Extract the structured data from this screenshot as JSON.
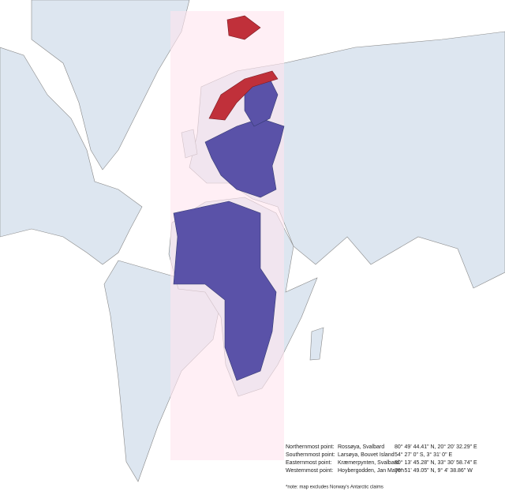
{
  "extreme_points": [
    {
      "label": "Northernmost point:",
      "place": "Rossøya, Svalbard",
      "coordinates": "80° 49' 44.41\" N, 20° 20' 32.29\" E"
    },
    {
      "label": "Southernmost point:",
      "place": "Larsøya, Bouvet Island",
      "coordinates": "54° 27' 0\" S, 3° 31' 0\" E"
    },
    {
      "label": "Easternmost point:",
      "place": "Kræmerpynten, Svalbard",
      "coordinates": "80° 13' 45.28\" N, 33° 30' 58.74\" E"
    },
    {
      "label": "Westernmost point:",
      "place": "Hoybergodden, Jan Mayen",
      "coordinates": "70° 51' 49.05\" N, 9° 4' 38.86\" W"
    }
  ],
  "note": "*note: map excludes Norway's Antarctic claims"
}
